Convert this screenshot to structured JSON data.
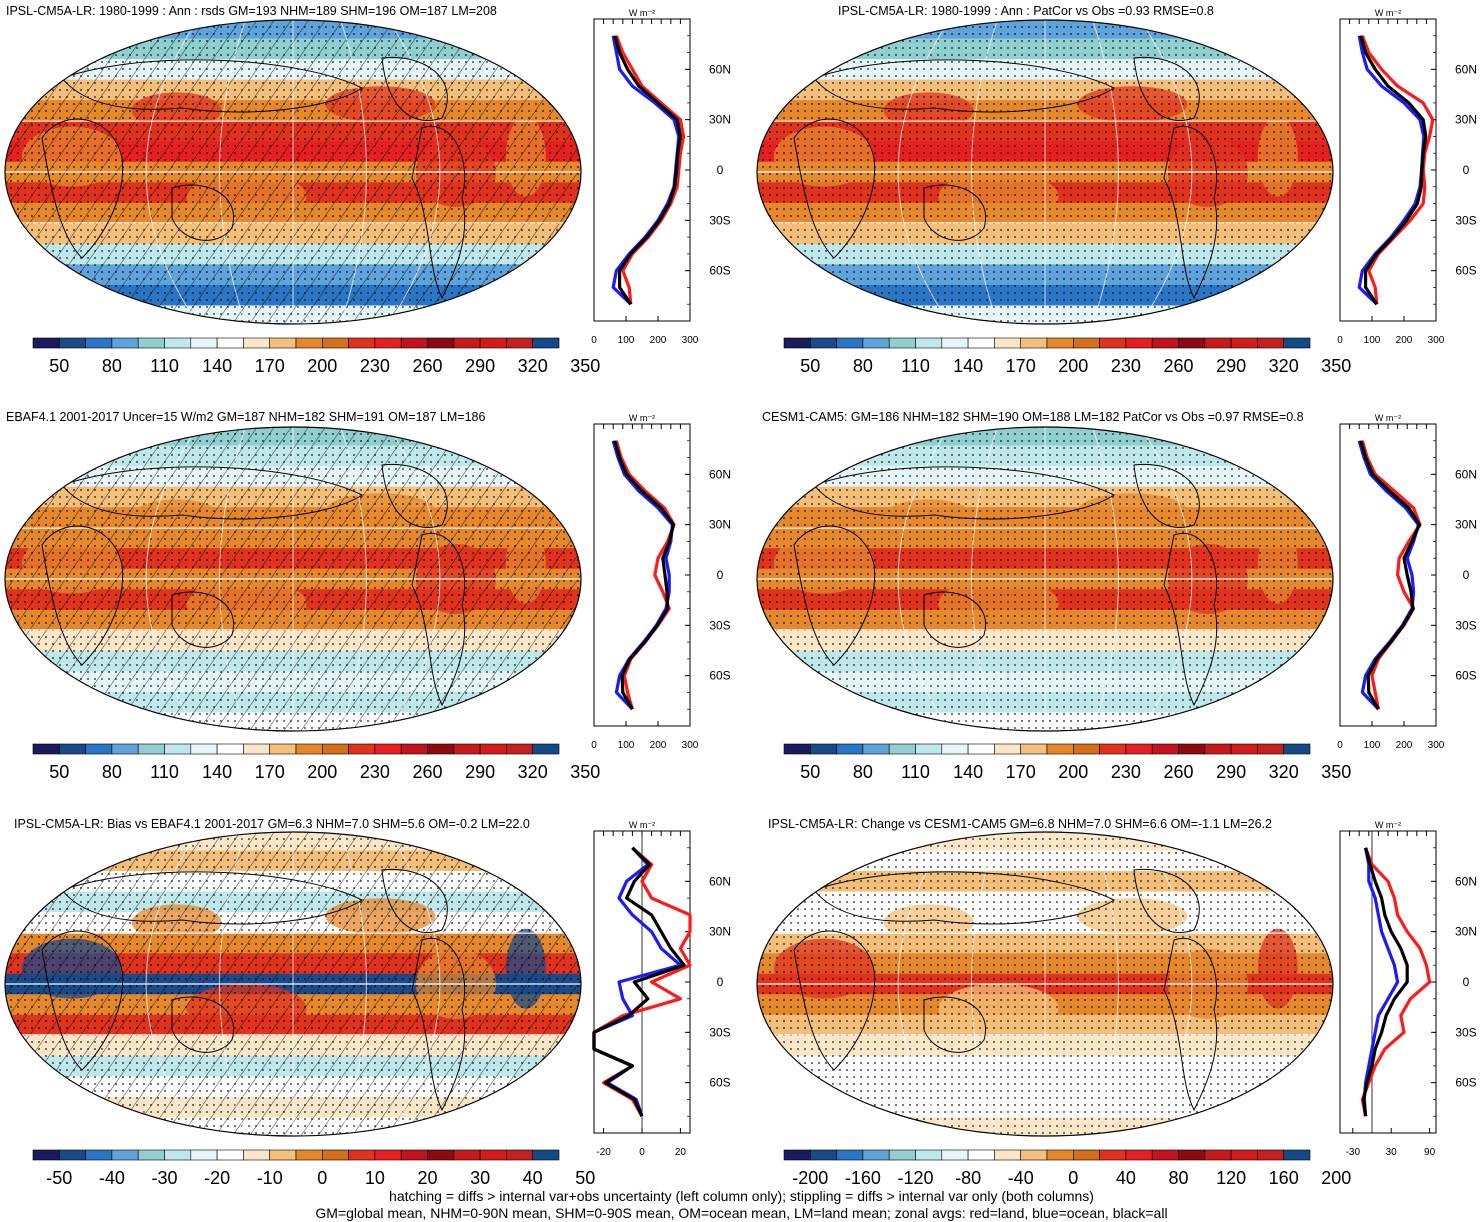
{
  "palette_abs": [
    "#1a1a5e",
    "#1b4a8a",
    "#2a76c4",
    "#5ea3dc",
    "#8fcfcf",
    "#bfe8ec",
    "#e6f6f8",
    "#ffffff",
    "#fbe6c8",
    "#f4bf7a",
    "#e5882c",
    "#d4701c",
    "#e0331e",
    "#e62020",
    "#c4121e",
    "#8f0a10",
    "#c61a1a",
    "#d31b1b",
    "#c42020",
    "#134a88"
  ],
  "palette_diff": [
    "#1a1a5e",
    "#1b4a8a",
    "#2a76c4",
    "#5ea3dc",
    "#8fcfcf",
    "#bfe8ec",
    "#e6f6f8",
    "#ffffff",
    "#fbe6c8",
    "#f4bf7a",
    "#e5882c",
    "#d4701c",
    "#e0331e",
    "#e62020",
    "#c4121e",
    "#8f0a10",
    "#c61a1a",
    "#d31b1b",
    "#c42020",
    "#134a88"
  ],
  "series_colors": {
    "land": "#ff1a1a",
    "ocean": "#1a1aff",
    "all": "#000000"
  },
  "unit_label": "W m⁻²",
  "footer": {
    "line1": "hatching = diffs > internal var+obs uncertainty (left column only); stippling = diffs > internal var only (both columns)",
    "line2": "GM=global mean, NHM=0-90N mean, SHM=0-90S mean, OM=ocean mean, LM=land mean; zonal avgs: red=land, blue=ocean, black=all"
  },
  "chart_data": [
    {
      "type": "heatmap",
      "title": "IPSL-CM5A-LR: 1980-1999 : Ann : rsds GM=193 NHM=189 SHM=196 OM=187 LM=208",
      "colorbar_ticks": [
        "50",
        "80",
        "110",
        "140",
        "170",
        "200",
        "230",
        "260",
        "290",
        "320",
        "350"
      ],
      "zonal_xticks": [
        "0",
        "100",
        "200",
        "300"
      ],
      "zonal_xlim": [
        0,
        300
      ],
      "lat_ticks": [
        "60N",
        "30N",
        "0",
        "30S",
        "60S"
      ],
      "lat_values": [
        80,
        70,
        60,
        50,
        40,
        30,
        20,
        10,
        0,
        -10,
        -20,
        -30,
        -40,
        -50,
        -60,
        -70,
        -80
      ],
      "series": [
        {
          "name": "land",
          "values": [
            70,
            90,
            120,
            150,
            210,
            270,
            280,
            270,
            265,
            260,
            240,
            210,
            170,
            120,
            90,
            110,
            115
          ]
        },
        {
          "name": "ocean",
          "values": [
            60,
            70,
            80,
            120,
            190,
            250,
            265,
            260,
            255,
            250,
            230,
            200,
            160,
            110,
            70,
            60,
            115
          ]
        },
        {
          "name": "all",
          "values": [
            65,
            80,
            105,
            140,
            200,
            260,
            270,
            262,
            258,
            252,
            235,
            205,
            165,
            115,
            80,
            80,
            115
          ]
        }
      ],
      "stats": {
        "GM": 193,
        "NHM": 189,
        "SHM": 196,
        "OM": 187,
        "LM": 208
      }
    },
    {
      "type": "heatmap",
      "title": "IPSL-CM5A-LR: 1980-1999 : Ann : PatCor vs Obs =0.93 RMSE=0.8",
      "colorbar_ticks": [
        "50",
        "80",
        "110",
        "140",
        "170",
        "200",
        "230",
        "260",
        "290",
        "320",
        "350"
      ],
      "zonal_xticks": [
        "0",
        "100",
        "200",
        "300"
      ],
      "zonal_xlim": [
        0,
        300
      ],
      "lat_ticks": [
        "60N",
        "30N",
        "0",
        "30S",
        "60S"
      ],
      "lat_values": [
        80,
        70,
        60,
        50,
        40,
        30,
        20,
        10,
        0,
        -10,
        -20,
        -30,
        -40,
        -50,
        -60,
        -70,
        -80
      ],
      "series": [
        {
          "name": "land",
          "values": [
            70,
            90,
            130,
            180,
            260,
            290,
            280,
            265,
            260,
            265,
            260,
            220,
            170,
            120,
            90,
            110,
            115
          ]
        },
        {
          "name": "ocean",
          "values": [
            60,
            70,
            85,
            130,
            200,
            250,
            262,
            258,
            255,
            250,
            235,
            200,
            160,
            110,
            70,
            60,
            115
          ]
        },
        {
          "name": "all",
          "values": [
            65,
            80,
            110,
            150,
            215,
            260,
            268,
            260,
            256,
            254,
            242,
            208,
            165,
            115,
            80,
            80,
            115
          ]
        }
      ],
      "stats": {
        "PatCor": 0.93,
        "RMSE": 0.8
      }
    },
    {
      "type": "heatmap",
      "title": "EBAF4.1 2001-2017 Uncer=15 W/m2 GM=187 NHM=182 SHM=191 OM=187 LM=186",
      "colorbar_ticks": [
        "50",
        "80",
        "110",
        "140",
        "170",
        "200",
        "230",
        "260",
        "290",
        "320",
        "350"
      ],
      "zonal_xticks": [
        "0",
        "100",
        "200",
        "300"
      ],
      "zonal_xlim": [
        0,
        300
      ],
      "lat_ticks": [
        "60N",
        "30N",
        "0",
        "30S",
        "60S"
      ],
      "lat_values": [
        80,
        70,
        60,
        50,
        40,
        30,
        20,
        10,
        0,
        -10,
        -20,
        -30,
        -40,
        -50,
        -60,
        -70,
        -80
      ],
      "series": [
        {
          "name": "land",
          "values": [
            70,
            85,
            110,
            160,
            220,
            250,
            230,
            200,
            190,
            215,
            235,
            200,
            160,
            115,
            95,
            105,
            120
          ]
        },
        {
          "name": "ocean",
          "values": [
            60,
            75,
            95,
            140,
            200,
            245,
            240,
            225,
            235,
            235,
            225,
            195,
            155,
            110,
            80,
            70,
            120
          ]
        },
        {
          "name": "all",
          "values": [
            65,
            80,
            102,
            150,
            210,
            248,
            236,
            215,
            222,
            228,
            230,
            198,
            158,
            112,
            88,
            90,
            120
          ]
        }
      ],
      "stats": {
        "Uncer": 15,
        "GM": 187,
        "NHM": 182,
        "SHM": 191,
        "OM": 187,
        "LM": 186
      }
    },
    {
      "type": "heatmap",
      "title": "CESM1-CAM5: GM=186 NHM=182 SHM=190 OM=188 LM=182 PatCor vs Obs =0.97 RMSE=0.8",
      "colorbar_ticks": [
        "50",
        "80",
        "110",
        "140",
        "170",
        "200",
        "230",
        "260",
        "290",
        "320",
        "350"
      ],
      "zonal_xticks": [
        "0",
        "100",
        "200",
        "300"
      ],
      "zonal_xlim": [
        0,
        300
      ],
      "lat_ticks": [
        "60N",
        "30N",
        "0",
        "30S",
        "60S"
      ],
      "lat_values": [
        80,
        70,
        60,
        50,
        40,
        30,
        20,
        10,
        0,
        -10,
        -20,
        -30,
        -40,
        -50,
        -60,
        -70,
        -80
      ],
      "series": [
        {
          "name": "land",
          "values": [
            70,
            85,
            110,
            170,
            230,
            250,
            215,
            185,
            180,
            200,
            230,
            200,
            160,
            120,
            100,
            110,
            120
          ]
        },
        {
          "name": "ocean",
          "values": [
            60,
            75,
            95,
            145,
            205,
            245,
            230,
            210,
            225,
            230,
            225,
            195,
            155,
            110,
            80,
            70,
            120
          ]
        },
        {
          "name": "all",
          "values": [
            65,
            80,
            102,
            155,
            215,
            248,
            225,
            200,
            210,
            222,
            228,
            198,
            158,
            115,
            88,
            90,
            120
          ]
        }
      ],
      "stats": {
        "GM": 186,
        "NHM": 182,
        "SHM": 190,
        "OM": 188,
        "LM": 182,
        "PatCor": 0.97,
        "RMSE": 0.8
      }
    },
    {
      "type": "heatmap",
      "title": "IPSL-CM5A-LR: Bias vs EBAF4.1 2001-2017 GM=6.3 NHM=7.0 SHM=5.6 OM=-0.2 LM=22.0",
      "colorbar_ticks": [
        "-50",
        "-40",
        "-30",
        "-20",
        "-10",
        "0",
        "10",
        "20",
        "30",
        "40",
        "50"
      ],
      "zonal_xticks": [
        "-20",
        "0",
        "20"
      ],
      "zonal_xlim": [
        -25,
        25
      ],
      "lat_ticks": [
        "60N",
        "30N",
        "0",
        "30S",
        "60S"
      ],
      "lat_values": [
        80,
        70,
        60,
        50,
        40,
        30,
        20,
        10,
        0,
        -10,
        -20,
        -30,
        -40,
        -50,
        -60,
        -70,
        -80
      ],
      "series": [
        {
          "name": "land",
          "values": [
            -5,
            5,
            0,
            5,
            25,
            30,
            20,
            25,
            5,
            20,
            -10,
            -38,
            -30,
            -5,
            -20,
            -5,
            0
          ]
        },
        {
          "name": "ocean",
          "values": [
            -5,
            3,
            -8,
            -12,
            -5,
            5,
            10,
            20,
            -12,
            -10,
            -5,
            -28,
            -25,
            -5,
            -18,
            -3,
            0
          ]
        },
        {
          "name": "all",
          "values": [
            -5,
            4,
            -4,
            -8,
            5,
            10,
            15,
            22,
            -4,
            3,
            -7,
            -30,
            -26,
            -5,
            -19,
            -4,
            0
          ]
        }
      ],
      "stats": {
        "GM": 6.3,
        "NHM": 7.0,
        "SHM": 5.6,
        "OM": -0.2,
        "LM": 22.0
      }
    },
    {
      "type": "heatmap",
      "title": "IPSL-CM5A-LR: Change vs CESM1-CAM5 GM=6.8 NHM=7.0 SHM=6.6 OM=-1.1 LM=26.2",
      "colorbar_ticks": [
        "-200",
        "-160",
        "-120",
        "-80",
        "-40",
        "0",
        "40",
        "80",
        "120",
        "160",
        "200"
      ],
      "zonal_xticks": [
        "-30",
        "30",
        "90"
      ],
      "zonal_xlim": [
        -50,
        100
      ],
      "lat_ticks": [
        "60N",
        "30N",
        "0",
        "30S",
        "60S"
      ],
      "lat_values": [
        80,
        70,
        60,
        50,
        40,
        30,
        20,
        10,
        0,
        -10,
        -20,
        -30,
        -40,
        -50,
        -60,
        -70,
        -80
      ],
      "series": [
        {
          "name": "land",
          "values": [
            -10,
            0,
            25,
            35,
            40,
            55,
            75,
            85,
            90,
            60,
            45,
            50,
            20,
            5,
            -5,
            -15,
            -10
          ]
        },
        {
          "name": "ocean",
          "values": [
            -10,
            -5,
            -5,
            5,
            10,
            15,
            25,
            35,
            40,
            25,
            10,
            5,
            0,
            -5,
            -10,
            -12,
            -10
          ]
        },
        {
          "name": "all",
          "values": [
            -10,
            -3,
            5,
            15,
            20,
            30,
            45,
            55,
            55,
            35,
            22,
            15,
            5,
            0,
            -8,
            -13,
            -10
          ]
        }
      ],
      "stats": {
        "GM": 6.8,
        "NHM": 7.0,
        "SHM": 6.6,
        "OM": -1.1,
        "LM": 26.2
      }
    }
  ]
}
